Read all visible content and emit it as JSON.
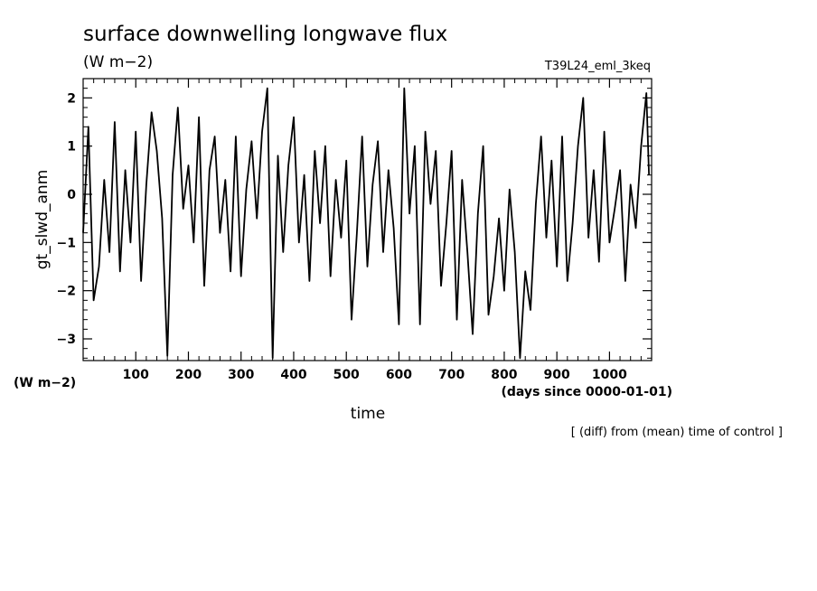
{
  "chart_data": {
    "type": "line",
    "title": "surface downwelling longwave flux",
    "units": "(W m−2)",
    "experiment": "T39L24_eml_3keq",
    "xlabel": "time",
    "x_units": "(days since 0000-01-01)",
    "ylabel": "gt_slwd_anm",
    "y_units": "(W m−2)",
    "note": "[ (diff) from (mean) time of control ]",
    "xlim": [
      0,
      1080
    ],
    "ylim": [
      -3.45,
      2.4
    ],
    "x_ticks": [
      100,
      200,
      300,
      400,
      500,
      600,
      700,
      800,
      900,
      1000
    ],
    "y_ticks": [
      2,
      1,
      0,
      -1,
      -2,
      -3
    ],
    "y_tick_labels": [
      "2",
      "1",
      "0",
      "−1",
      "−2",
      "−3"
    ],
    "grid": false,
    "series": [
      {
        "x": [
          0,
          10,
          20,
          30,
          40,
          50,
          60,
          70,
          80,
          90,
          100,
          110,
          120,
          130,
          140,
          150,
          160,
          170,
          180,
          190,
          200,
          210,
          220,
          230,
          240,
          250,
          260,
          270,
          280,
          290,
          300,
          310,
          320,
          330,
          340,
          350,
          360,
          370,
          380,
          390,
          400,
          410,
          420,
          430,
          440,
          450,
          460,
          470,
          480,
          490,
          500,
          510,
          520,
          530,
          540,
          550,
          560,
          570,
          580,
          590,
          600,
          610,
          620,
          630,
          640,
          650,
          660,
          670,
          680,
          690,
          700,
          710,
          720,
          730,
          740,
          750,
          760,
          770,
          780,
          790,
          800,
          810,
          820,
          830,
          840,
          850,
          860,
          870,
          880,
          890,
          900,
          910,
          920,
          930,
          940,
          950,
          960,
          970,
          980,
          990,
          1000,
          1010,
          1020,
          1030,
          1040,
          1050,
          1060,
          1070,
          1075
        ],
        "y": [
          -0.8,
          1.4,
          -2.2,
          -1.5,
          0.3,
          -1.2,
          1.5,
          -1.6,
          0.5,
          -1.0,
          1.3,
          -1.8,
          0.2,
          1.7,
          0.9,
          -0.5,
          -3.35,
          0.4,
          1.8,
          -0.3,
          0.6,
          -1.0,
          1.6,
          -1.9,
          0.5,
          1.2,
          -0.8,
          0.3,
          -1.6,
          1.2,
          -1.7,
          0.1,
          1.1,
          -0.5,
          1.3,
          2.2,
          -3.4,
          0.8,
          -1.2,
          0.6,
          1.6,
          -1.0,
          0.4,
          -1.8,
          0.9,
          -0.6,
          1.0,
          -1.7,
          0.3,
          -0.9,
          0.7,
          -2.6,
          -0.8,
          1.2,
          -1.5,
          0.2,
          1.1,
          -1.2,
          0.5,
          -0.7,
          -2.7,
          2.2,
          -0.4,
          1.0,
          -2.7,
          1.3,
          -0.2,
          0.9,
          -1.9,
          -0.6,
          0.9,
          -2.6,
          0.3,
          -1.2,
          -2.9,
          -0.4,
          1.0,
          -2.5,
          -1.7,
          -0.5,
          -2.0,
          0.1,
          -1.2,
          -3.4,
          -1.6,
          -2.4,
          -0.2,
          1.2,
          -0.9,
          0.7,
          -1.5,
          1.2,
          -1.8,
          -0.6,
          1.0,
          2.0,
          -0.9,
          0.5,
          -1.4,
          1.3,
          -1.0,
          -0.3,
          0.5,
          -1.8,
          0.2,
          -0.7,
          1.0,
          2.1,
          0.4
        ]
      }
    ]
  }
}
